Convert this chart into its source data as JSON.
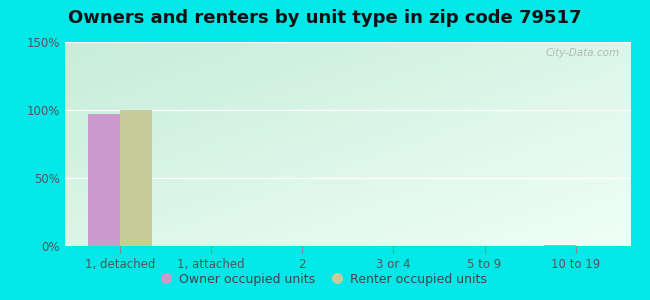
{
  "title": "Owners and renters by unit type in zip code 79517",
  "categories": [
    "1, detached",
    "1, attached",
    "2",
    "3 or 4",
    "5 to 9",
    "10 to 19"
  ],
  "owner_values": [
    97,
    0,
    0,
    0,
    0,
    1
  ],
  "renter_values": [
    100,
    0,
    0,
    0,
    0,
    0
  ],
  "owner_color": "#cc99cc",
  "renter_color": "#c8cc99",
  "ylim": [
    0,
    150
  ],
  "yticks": [
    0,
    50,
    100,
    150
  ],
  "ytick_labels": [
    "0%",
    "50%",
    "100%",
    "150%"
  ],
  "background_outer": "#00e8e8",
  "watermark": "City-Data.com",
  "bar_width": 0.35,
  "title_fontsize": 13,
  "axis_fontsize": 8.5,
  "legend_fontsize": 9,
  "bg_color_topleft": "#d8ede8",
  "bg_color_bottomright": "#f0faf5",
  "bg_color_topright": "#f5fffc",
  "bg_color_bottomleft": "#cce8d8"
}
